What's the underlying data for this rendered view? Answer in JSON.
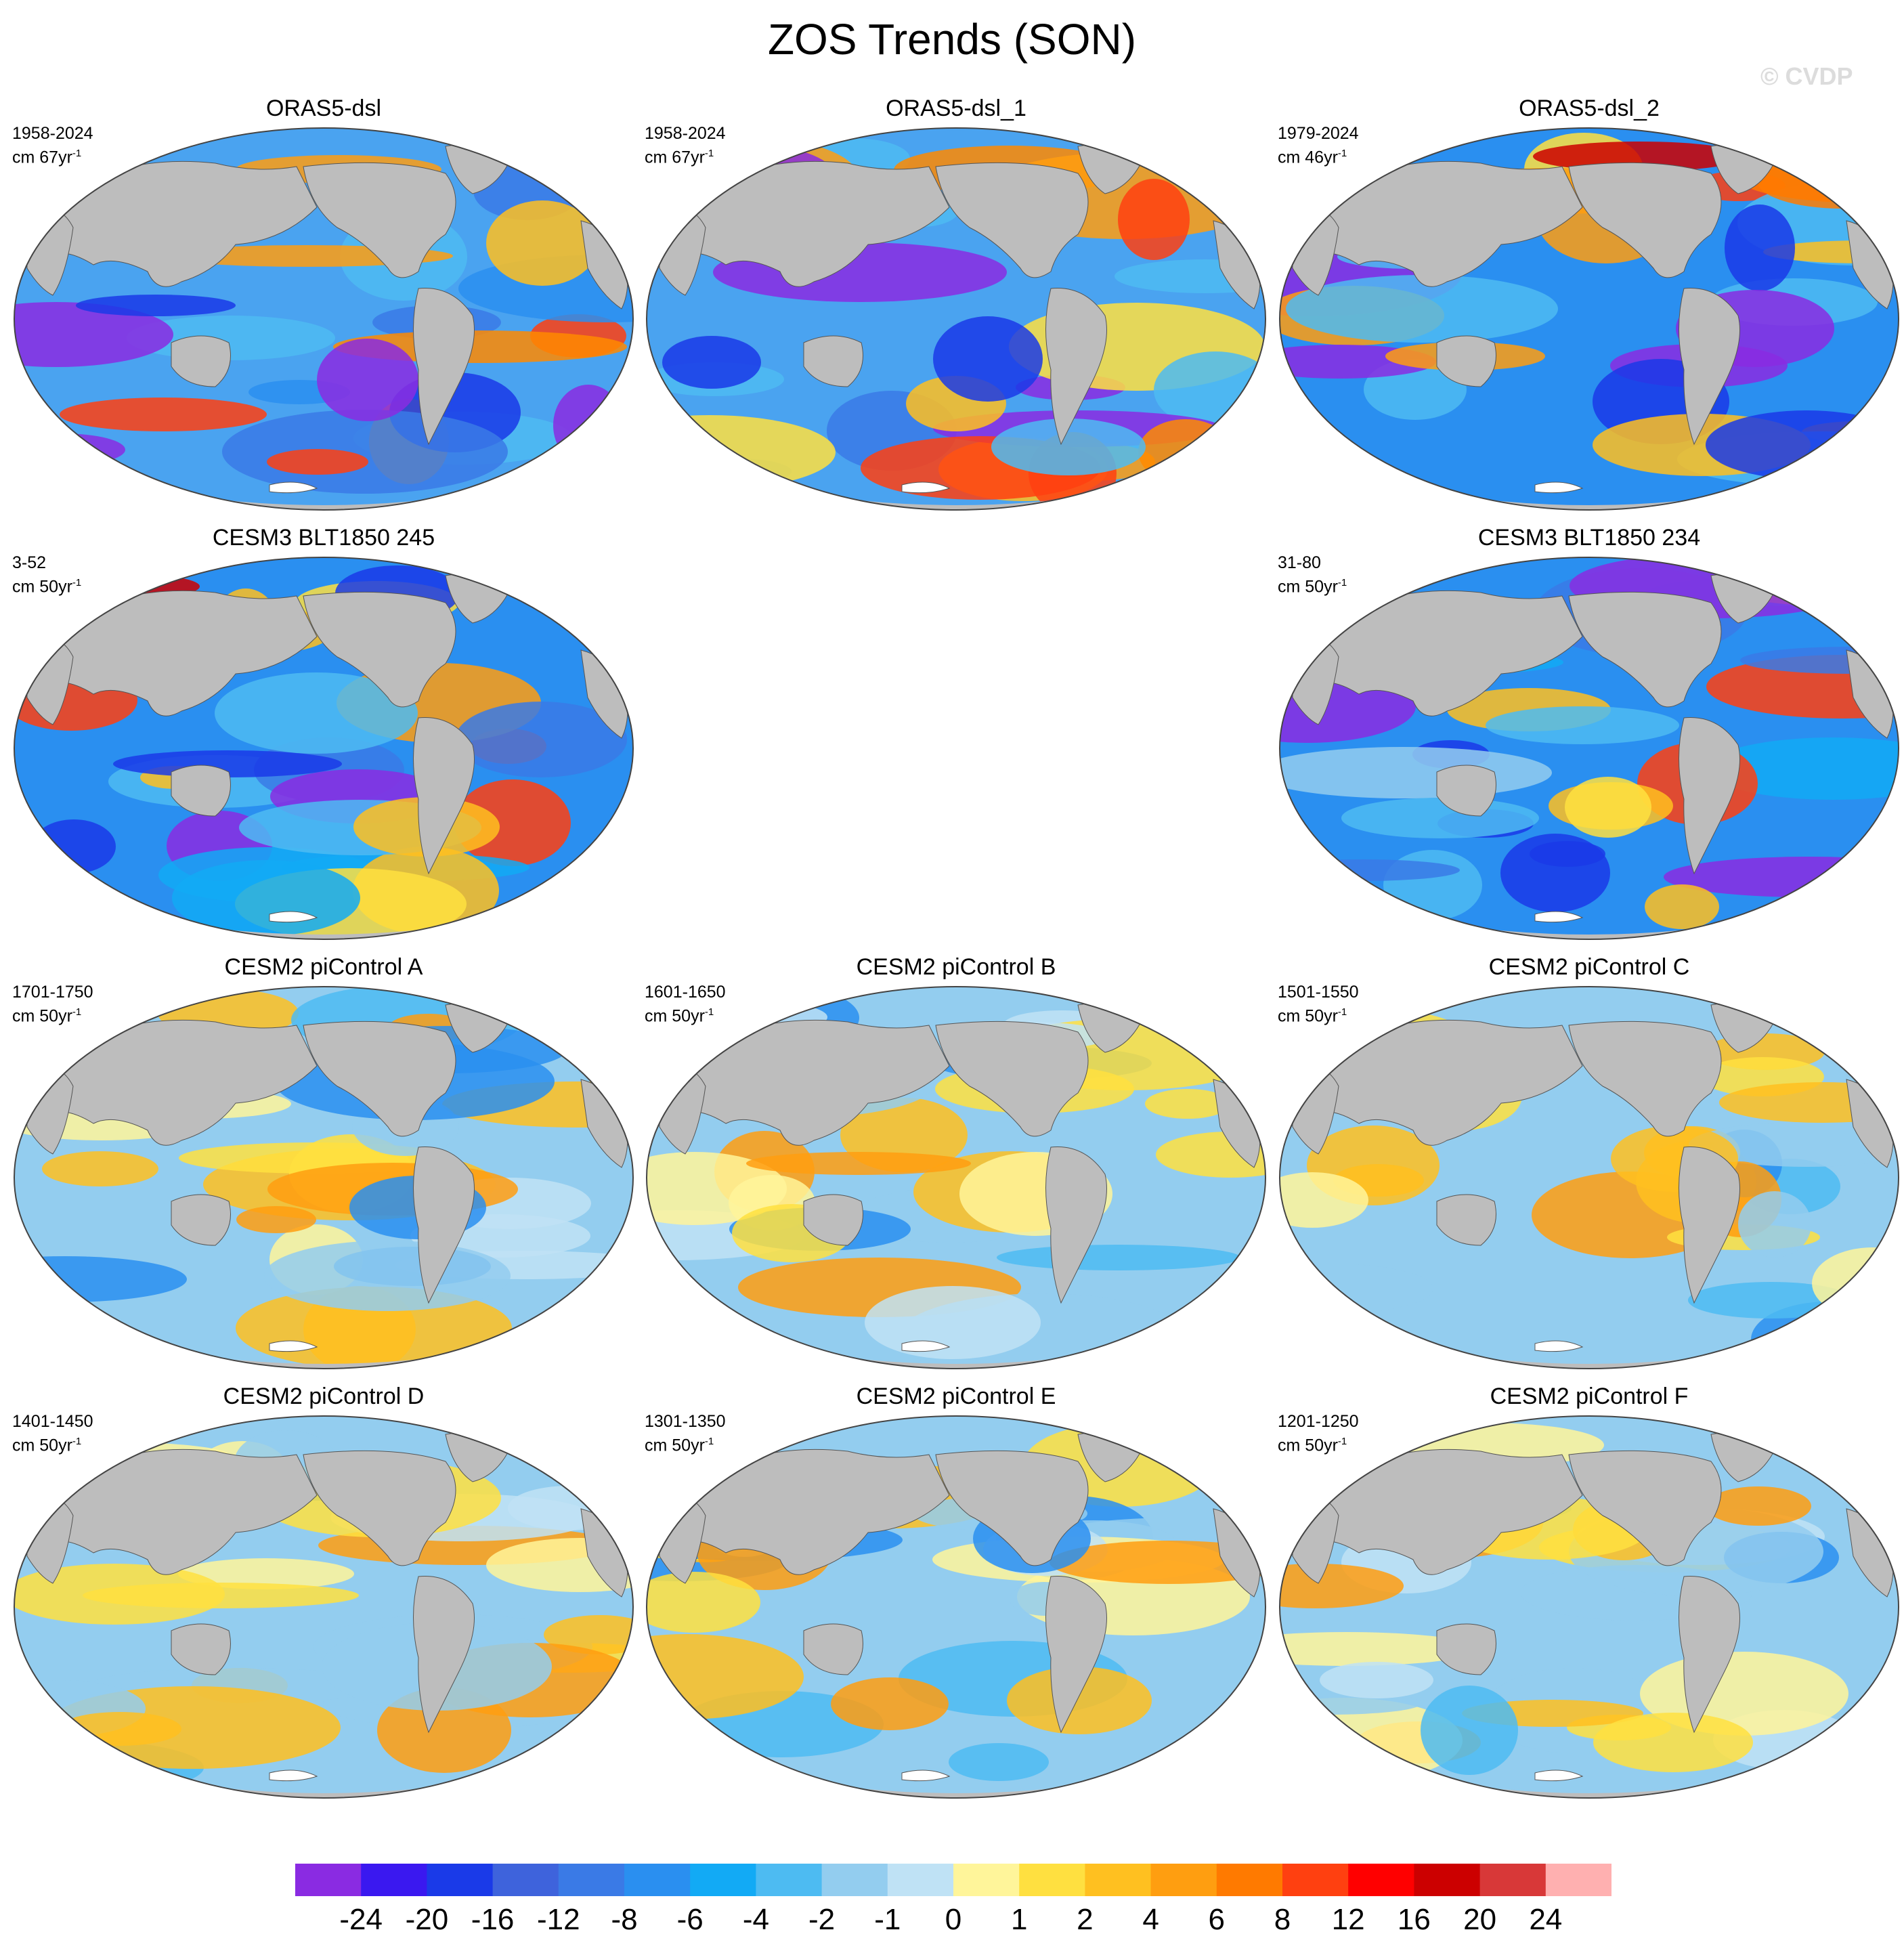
{
  "title": "ZOS Trends (SON)",
  "watermark": "© CVDP",
  "panels": [
    {
      "title": "ORAS5-dsl",
      "period": "1958-2024",
      "units_prefix": "cm 67yr",
      "units_exp": "-1",
      "style": "obs"
    },
    {
      "title": "ORAS5-dsl_1",
      "period": "1958-2024",
      "units_prefix": "cm 67yr",
      "units_exp": "-1",
      "style": "obs"
    },
    {
      "title": "ORAS5-dsl_2",
      "period": "1979-2024",
      "units_prefix": "cm 46yr",
      "units_exp": "-1",
      "style": "obs2"
    },
    {
      "title": "CESM3 BLT1850 245",
      "period": "3-52",
      "units_prefix": "cm 50yr",
      "units_exp": "-1",
      "style": "cesm3a"
    },
    {
      "title": "CESM3 BLT1850 234",
      "period": "31-80",
      "units_prefix": "cm 50yr",
      "units_exp": "-1",
      "style": "cesm3b"
    },
    {
      "title": "CESM2 piControl A",
      "period": "1701-1750",
      "units_prefix": "cm 50yr",
      "units_exp": "-1",
      "style": "pi"
    },
    {
      "title": "CESM2 piControl B",
      "period": "1601-1650",
      "units_prefix": "cm 50yr",
      "units_exp": "-1",
      "style": "pi"
    },
    {
      "title": "CESM2 piControl C",
      "period": "1501-1550",
      "units_prefix": "cm 50yr",
      "units_exp": "-1",
      "style": "pi"
    },
    {
      "title": "CESM2 piControl D",
      "period": "1401-1450",
      "units_prefix": "cm 50yr",
      "units_exp": "-1",
      "style": "pi"
    },
    {
      "title": "CESM2 piControl E",
      "period": "1301-1350",
      "units_prefix": "cm 50yr",
      "units_exp": "-1",
      "style": "pi"
    },
    {
      "title": "CESM2 piControl F",
      "period": "1201-1250",
      "units_prefix": "cm 50yr",
      "units_exp": "-1",
      "style": "pi"
    }
  ],
  "colorbar": {
    "colors": [
      "#8a2be2",
      "#3a18f0",
      "#1a3ae8",
      "#3e63dc",
      "#3a7ae6",
      "#2a8ff0",
      "#12aaf5",
      "#4dbbf2",
      "#93cdef",
      "#bfe2f5",
      "#fff59a",
      "#ffe040",
      "#ffc020",
      "#ff9e10",
      "#ff7a00",
      "#ff4010",
      "#ff0000",
      "#cc0000",
      "#d83838",
      "#ffb0b0"
    ],
    "labels": [
      "-24",
      "-20",
      "-16",
      "-12",
      "-8",
      "-6",
      "-4",
      "-2",
      "-1",
      "0",
      "1",
      "2",
      "4",
      "6",
      "8",
      "12",
      "16",
      "20",
      "24"
    ]
  }
}
